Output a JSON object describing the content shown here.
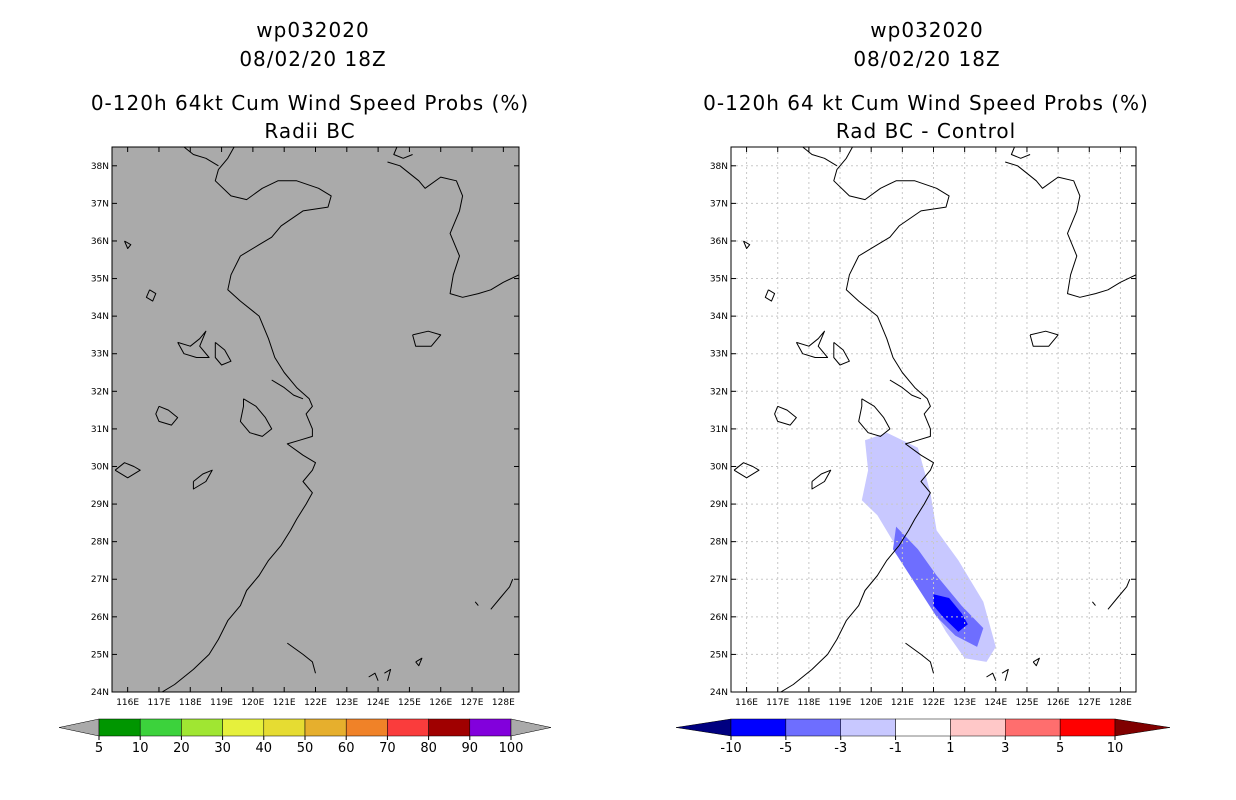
{
  "chart_data": [
    {
      "type": "heatmap",
      "storm_id": "wp032020",
      "datetime": "08/02/20 18Z",
      "title": "0-120h 64kt Cum Wind Speed Probs (%)",
      "subtitle": "Radii BC",
      "xlim": [
        115.5,
        128.5
      ],
      "ylim": [
        24,
        38.5
      ],
      "x_ticks": [
        "116E",
        "117E",
        "118E",
        "119E",
        "120E",
        "121E",
        "122E",
        "123E",
        "124E",
        "125E",
        "126E",
        "127E",
        "128E"
      ],
      "y_ticks": [
        "24N",
        "25N",
        "26N",
        "27N",
        "28N",
        "29N",
        "30N",
        "31N",
        "32N",
        "33N",
        "34N",
        "35N",
        "36N",
        "37N",
        "38N"
      ],
      "field_color": "#aaaaaa",
      "grid": false,
      "colorbar": {
        "labels": [
          "5",
          "10",
          "20",
          "30",
          "40",
          "50",
          "60",
          "70",
          "80",
          "90",
          "100"
        ],
        "colors": [
          "#aaaaaa",
          "#009600",
          "#3cd23c",
          "#a0e632",
          "#e6f03c",
          "#e6dc32",
          "#e6af2d",
          "#f08228",
          "#fa3c3c",
          "#a00000",
          "#8200dc",
          "#aaaaaa"
        ]
      }
    },
    {
      "type": "heatmap",
      "storm_id": "wp032020",
      "datetime": "08/02/20 18Z",
      "title": "0-120h 64 kt Cum Wind Speed Probs (%)",
      "subtitle": "Rad BC - Control",
      "xlim": [
        115.5,
        128.5
      ],
      "ylim": [
        24,
        38.5
      ],
      "x_ticks": [
        "116E",
        "117E",
        "118E",
        "119E",
        "120E",
        "121E",
        "122E",
        "123E",
        "124E",
        "125E",
        "126E",
        "127E",
        "128E"
      ],
      "y_ticks": [
        "24N",
        "25N",
        "26N",
        "27N",
        "28N",
        "29N",
        "30N",
        "31N",
        "32N",
        "33N",
        "34N",
        "35N",
        "36N",
        "37N",
        "38N"
      ],
      "field_color": "#ffffff",
      "grid": true,
      "contour_bands": [
        {
          "range": [
            -3,
            -1
          ],
          "color": "#c8c8ff",
          "lonlat": [
            [
              119.8,
              30.7
            ],
            [
              120.5,
              30.9
            ],
            [
              121.5,
              30.5
            ],
            [
              121.9,
              29.3
            ],
            [
              122.1,
              28.3
            ],
            [
              122.8,
              27.5
            ],
            [
              123.6,
              26.4
            ],
            [
              124.0,
              25.2
            ],
            [
              123.7,
              24.8
            ],
            [
              123.0,
              24.9
            ],
            [
              122.4,
              25.6
            ],
            [
              121.7,
              26.6
            ],
            [
              121.0,
              27.6
            ],
            [
              120.2,
              28.7
            ],
            [
              119.7,
              29.1
            ],
            [
              119.9,
              29.9
            ]
          ]
        },
        {
          "range": [
            -5,
            -3
          ],
          "color": "#6e6eff",
          "lonlat": [
            [
              120.8,
              28.4
            ],
            [
              121.5,
              27.8
            ],
            [
              122.1,
              27.1
            ],
            [
              122.9,
              26.3
            ],
            [
              123.6,
              25.7
            ],
            [
              123.4,
              25.2
            ],
            [
              122.7,
              25.5
            ],
            [
              122.1,
              26.0
            ],
            [
              121.4,
              26.9
            ],
            [
              120.7,
              27.8
            ]
          ]
        },
        {
          "range": [
            -10,
            -5
          ],
          "color": "#0000ff",
          "lonlat": [
            [
              122.0,
              26.6
            ],
            [
              122.5,
              26.5
            ],
            [
              122.9,
              26.1
            ],
            [
              123.1,
              25.8
            ],
            [
              122.8,
              25.6
            ],
            [
              122.3,
              26.0
            ],
            [
              122.0,
              26.3
            ]
          ]
        }
      ],
      "colorbar": {
        "labels": [
          "-10",
          "-5",
          "-3",
          "-1",
          "1",
          "3",
          "5",
          "10"
        ],
        "colors": [
          "#000080",
          "#0000ff",
          "#6e6eff",
          "#c8c8ff",
          "#ffffff",
          "#ffc8c8",
          "#ff6e6e",
          "#ff0000",
          "#800000"
        ]
      }
    }
  ]
}
